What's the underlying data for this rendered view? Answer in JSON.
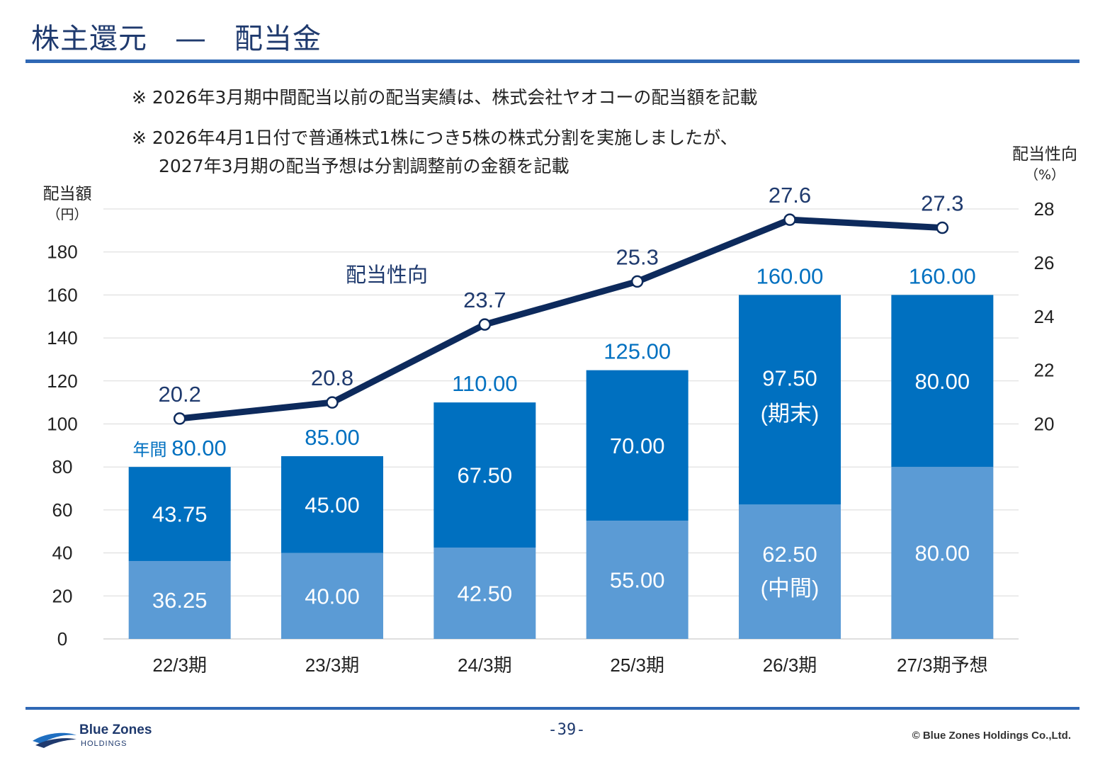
{
  "page": {
    "title": "株主還元　―　配当金",
    "notes": [
      "※ 2026年3月期中間配当以前の配当実績は、株式会社ヤオコーの配当額を記載",
      "※ 2026年4月1日付で普通株式1株につき5株の株式分割を実施しましたが、",
      "2027年3月期の配当予想は分割調整前の金額を記載"
    ],
    "page_number": "-39-",
    "copyright": "© Blue Zones Holdings Co.,Ltd.",
    "logo": {
      "name": "Blue Zones",
      "sub": "HOLDINGS"
    }
  },
  "chart_data": {
    "type": "bar",
    "stacked": true,
    "categories": [
      "22/3期",
      "23/3期",
      "24/3期",
      "25/3期",
      "26/3期",
      "27/3期予想"
    ],
    "series": [
      {
        "values": [
          36.25,
          40.0,
          42.5,
          55.0,
          62.5,
          80.0
        ],
        "color": "#5b9bd5",
        "labels": [
          "36.25",
          "40.00",
          "42.50",
          "55.00",
          "62.50",
          "80.00"
        ]
      },
      {
        "values": [
          43.75,
          45.0,
          67.5,
          70.0,
          97.5,
          80.0
        ],
        "color": "#0070c0",
        "labels": [
          "43.75",
          "45.00",
          "67.50",
          "70.00",
          "97.50",
          "80.00"
        ]
      }
    ],
    "sublabels": {
      "interim": "(中間)",
      "final": "(期末)"
    },
    "totals": [
      "80.00",
      "85.00",
      "110.00",
      "125.00",
      "160.00",
      "160.00"
    ],
    "total_prefix": "年間",
    "total_color": "#0070c0",
    "ylabel": "配当額",
    "yunit": "（円）",
    "ylim": [
      0,
      200
    ],
    "yticks": [
      0,
      20,
      40,
      60,
      80,
      100,
      120,
      140,
      160,
      180
    ],
    "line": {
      "name": "配当性向",
      "values": [
        20.2,
        20.8,
        23.7,
        25.3,
        27.6,
        27.3
      ],
      "labels": [
        "20.2",
        "20.8",
        "23.7",
        "25.3",
        "27.6",
        "27.3"
      ],
      "color": "#0d2a5c"
    },
    "y2label": "配当性向",
    "y2unit": "（%）",
    "y2lim": [
      12,
      28
    ],
    "y2ticks": [
      20,
      22,
      24,
      26,
      28
    ],
    "grid": true,
    "text_color": "#1f3a6e"
  }
}
